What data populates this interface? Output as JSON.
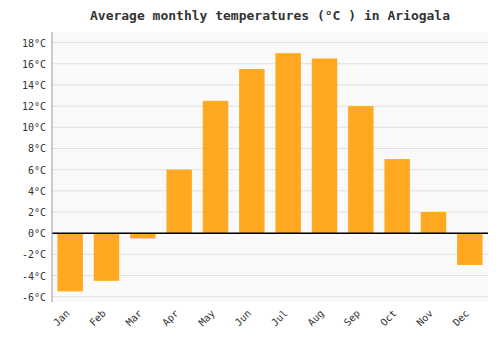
{
  "chart_data": {
    "type": "bar",
    "title": "Average monthly temperatures (°C ) in Ariogala",
    "categories": [
      "Jan",
      "Feb",
      "Mar",
      "Apr",
      "May",
      "Jun",
      "Jul",
      "Aug",
      "Sep",
      "Oct",
      "Nov",
      "Dec"
    ],
    "values": [
      -5.5,
      -4.5,
      -0.5,
      6.0,
      12.5,
      15.5,
      17.0,
      16.5,
      12.0,
      7.0,
      2.0,
      -3.0
    ],
    "color": "#FFA820",
    "ylim": [
      -6.5,
      19.0
    ],
    "yticks": [
      {
        "value": -6,
        "label": "-6°C"
      },
      {
        "value": -4,
        "label": "-4°C"
      },
      {
        "value": -2,
        "label": "-2°C"
      },
      {
        "value": 0,
        "label": "0°C"
      },
      {
        "value": 2,
        "label": "2°C"
      },
      {
        "value": 4,
        "label": "4°C"
      },
      {
        "value": 6,
        "label": "6°C"
      },
      {
        "value": 8,
        "label": "8°C"
      },
      {
        "value": 10,
        "label": "10°C"
      },
      {
        "value": 12,
        "label": "12°C"
      },
      {
        "value": 14,
        "label": "14°C"
      },
      {
        "value": 16,
        "label": "16°C"
      },
      {
        "value": 18,
        "label": "18°C"
      }
    ],
    "grid": true
  }
}
